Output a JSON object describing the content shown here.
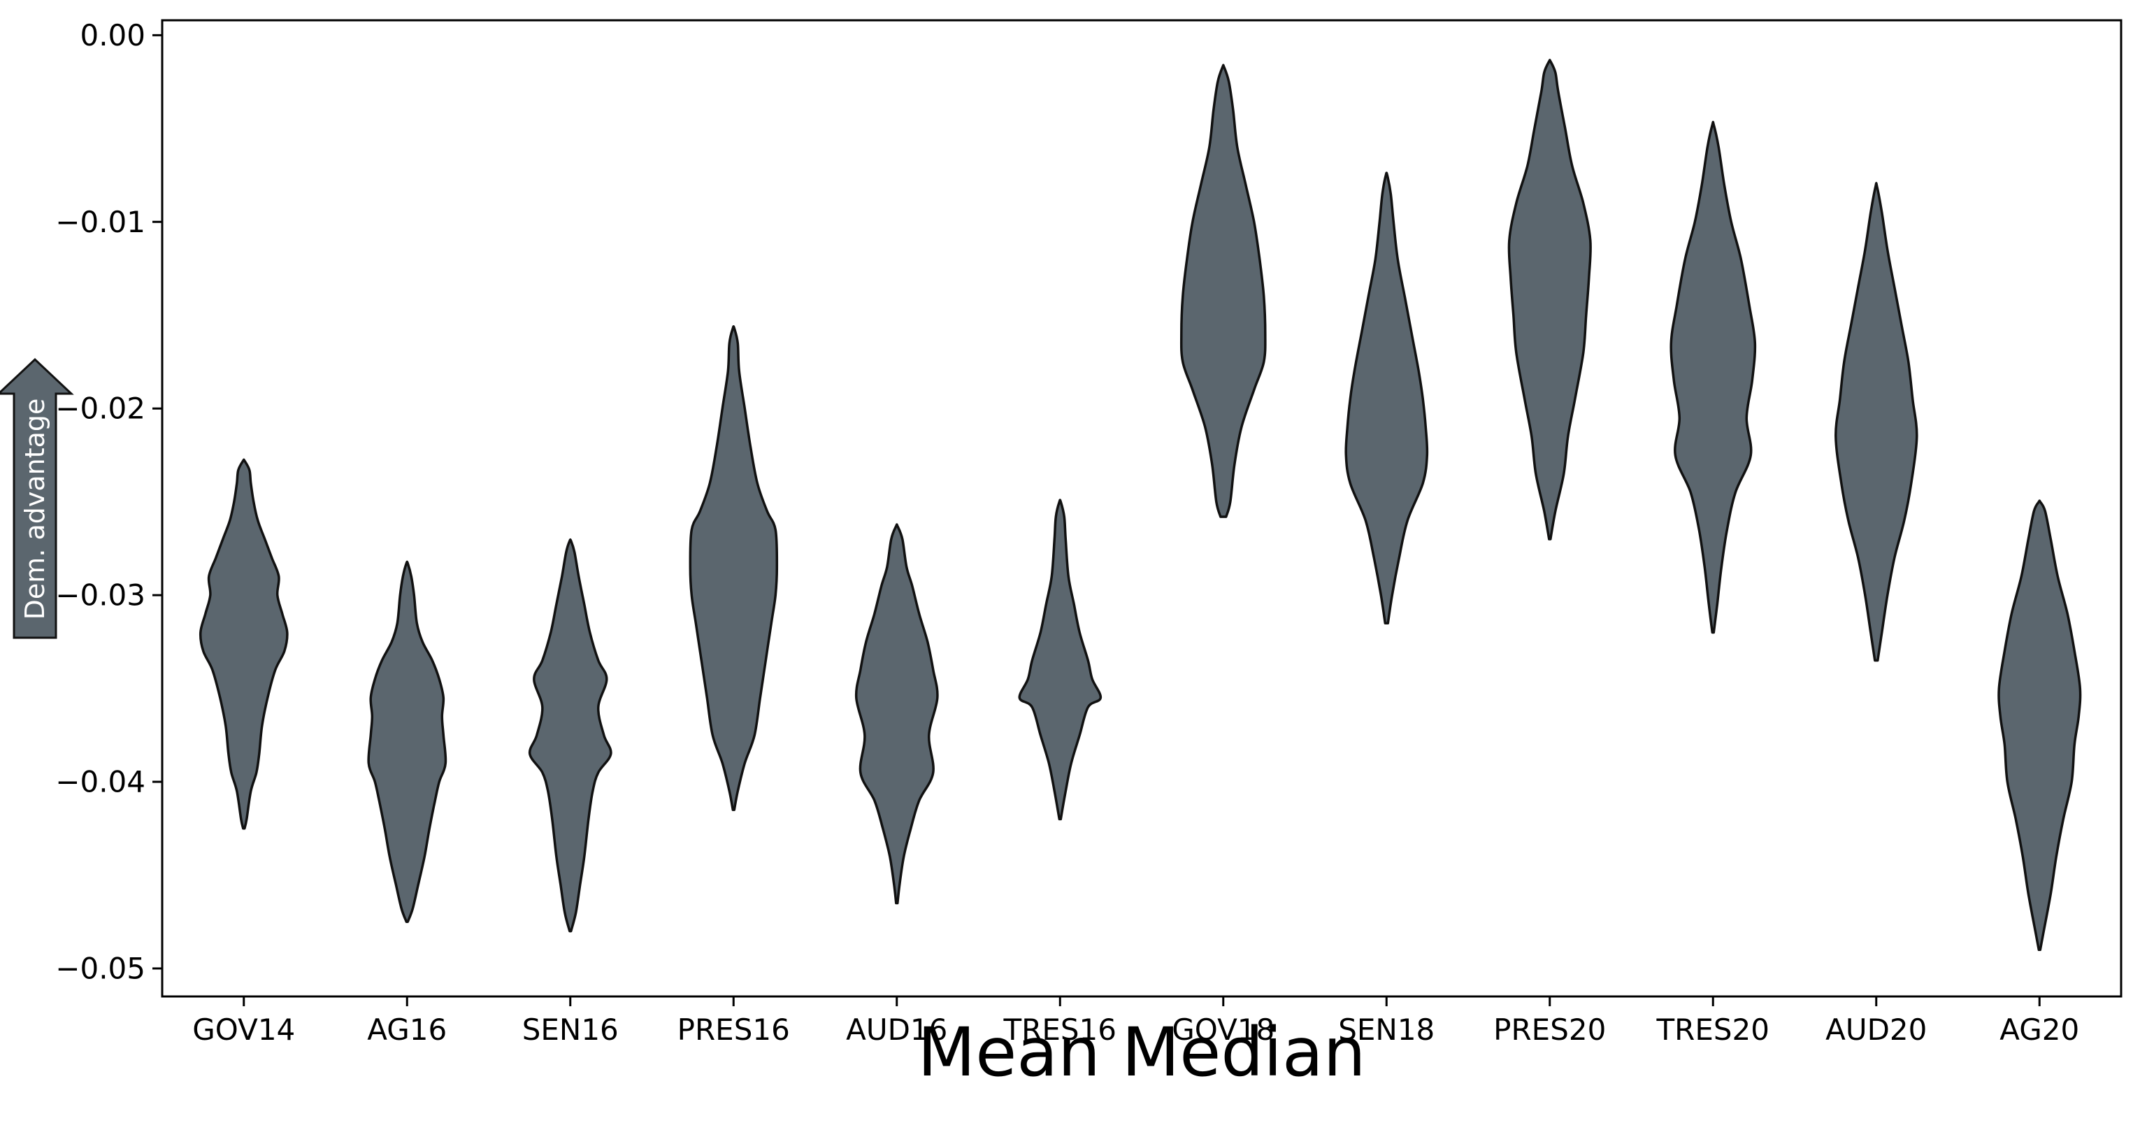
{
  "chart_data": {
    "type": "violin",
    "title": "",
    "xlabel": "Mean Median",
    "ylabel": "Dem. advantage",
    "ylim": [
      -0.0515,
      0.0008
    ],
    "yticks": [
      0.0,
      -0.01,
      -0.02,
      -0.03,
      -0.04,
      -0.05
    ],
    "ytick_labels": [
      "0.00",
      "−0.01",
      "−0.02",
      "−0.03",
      "−0.04",
      "−0.05"
    ],
    "grid": false,
    "legend": "none",
    "colors": {
      "violin_fill": "#5b666e",
      "violin_edge": "#111111",
      "axis": "#000000",
      "arrow_fill": "#5b666e"
    },
    "categories": [
      "GOV14",
      "AG16",
      "SEN16",
      "PRES16",
      "AUD16",
      "TRES16",
      "GOV18",
      "SEN18",
      "PRES20",
      "TRES20",
      "AUD20",
      "AG20"
    ],
    "violins": [
      {
        "category": "GOV14",
        "min": -0.0425,
        "max": -0.0228,
        "profile": [
          [
            -0.0425,
            0.001
          ],
          [
            -0.042,
            0.004
          ],
          [
            -0.0405,
            0.01
          ],
          [
            -0.0395,
            0.018
          ],
          [
            -0.0385,
            0.022
          ],
          [
            -0.037,
            0.026
          ],
          [
            -0.0355,
            0.034
          ],
          [
            -0.034,
            0.045
          ],
          [
            -0.033,
            0.058
          ],
          [
            -0.032,
            0.062
          ],
          [
            -0.031,
            0.055
          ],
          [
            -0.03,
            0.048
          ],
          [
            -0.029,
            0.05
          ],
          [
            -0.028,
            0.04
          ],
          [
            -0.027,
            0.03
          ],
          [
            -0.026,
            0.02
          ],
          [
            -0.025,
            0.014
          ],
          [
            -0.024,
            0.01
          ],
          [
            -0.0233,
            0.008
          ],
          [
            -0.0228,
            0.001
          ]
        ]
      },
      {
        "category": "AG16",
        "min": -0.0475,
        "max": -0.0283,
        "profile": [
          [
            -0.0475,
            0.001
          ],
          [
            -0.0468,
            0.008
          ],
          [
            -0.0455,
            0.016
          ],
          [
            -0.044,
            0.025
          ],
          [
            -0.0425,
            0.032
          ],
          [
            -0.041,
            0.04
          ],
          [
            -0.04,
            0.046
          ],
          [
            -0.039,
            0.055
          ],
          [
            -0.0375,
            0.052
          ],
          [
            -0.0365,
            0.05
          ],
          [
            -0.0355,
            0.052
          ],
          [
            -0.0345,
            0.046
          ],
          [
            -0.0335,
            0.036
          ],
          [
            -0.0325,
            0.022
          ],
          [
            -0.0315,
            0.014
          ],
          [
            -0.03,
            0.01
          ],
          [
            -0.029,
            0.006
          ],
          [
            -0.0283,
            0.001
          ]
        ]
      },
      {
        "category": "SEN16",
        "min": -0.048,
        "max": -0.0271,
        "profile": [
          [
            -0.048,
            0.001
          ],
          [
            -0.047,
            0.008
          ],
          [
            -0.0455,
            0.014
          ],
          [
            -0.044,
            0.02
          ],
          [
            -0.042,
            0.026
          ],
          [
            -0.0405,
            0.032
          ],
          [
            -0.0395,
            0.04
          ],
          [
            -0.0385,
            0.058
          ],
          [
            -0.0375,
            0.048
          ],
          [
            -0.036,
            0.04
          ],
          [
            -0.0345,
            0.052
          ],
          [
            -0.0335,
            0.04
          ],
          [
            -0.032,
            0.028
          ],
          [
            -0.0305,
            0.02
          ],
          [
            -0.029,
            0.012
          ],
          [
            -0.0277,
            0.006
          ],
          [
            -0.0271,
            0.001
          ]
        ]
      },
      {
        "category": "PRES16",
        "min": -0.0415,
        "max": -0.0157,
        "profile": [
          [
            -0.0415,
            0.001
          ],
          [
            -0.0405,
            0.006
          ],
          [
            -0.039,
            0.016
          ],
          [
            -0.0375,
            0.03
          ],
          [
            -0.0355,
            0.038
          ],
          [
            -0.0335,
            0.046
          ],
          [
            -0.0315,
            0.054
          ],
          [
            -0.03,
            0.06
          ],
          [
            -0.0285,
            0.062
          ],
          [
            -0.0265,
            0.06
          ],
          [
            -0.0255,
            0.048
          ],
          [
            -0.024,
            0.034
          ],
          [
            -0.022,
            0.024
          ],
          [
            -0.02,
            0.016
          ],
          [
            -0.018,
            0.008
          ],
          [
            -0.0165,
            0.006
          ],
          [
            -0.0157,
            0.001
          ]
        ]
      },
      {
        "category": "AUD16",
        "min": -0.0465,
        "max": -0.0263,
        "profile": [
          [
            -0.0465,
            0.001
          ],
          [
            -0.0455,
            0.004
          ],
          [
            -0.044,
            0.01
          ],
          [
            -0.0425,
            0.02
          ],
          [
            -0.041,
            0.032
          ],
          [
            -0.0395,
            0.052
          ],
          [
            -0.0375,
            0.046
          ],
          [
            -0.0355,
            0.058
          ],
          [
            -0.034,
            0.052
          ],
          [
            -0.0325,
            0.044
          ],
          [
            -0.031,
            0.032
          ],
          [
            -0.0295,
            0.022
          ],
          [
            -0.0285,
            0.014
          ],
          [
            -0.027,
            0.008
          ],
          [
            -0.0263,
            0.001
          ]
        ]
      },
      {
        "category": "TRES16",
        "min": -0.042,
        "max": -0.025,
        "profile": [
          [
            -0.042,
            0.001
          ],
          [
            -0.0405,
            0.008
          ],
          [
            -0.039,
            0.016
          ],
          [
            -0.0375,
            0.028
          ],
          [
            -0.036,
            0.04
          ],
          [
            -0.0355,
            0.058
          ],
          [
            -0.0345,
            0.046
          ],
          [
            -0.0335,
            0.04
          ],
          [
            -0.032,
            0.028
          ],
          [
            -0.0305,
            0.02
          ],
          [
            -0.029,
            0.012
          ],
          [
            -0.027,
            0.008
          ],
          [
            -0.0258,
            0.006
          ],
          [
            -0.025,
            0.001
          ]
        ]
      },
      {
        "category": "GOV18",
        "min": -0.0258,
        "max": -0.0017,
        "profile": [
          [
            -0.0258,
            0.004
          ],
          [
            -0.025,
            0.01
          ],
          [
            -0.023,
            0.016
          ],
          [
            -0.021,
            0.026
          ],
          [
            -0.019,
            0.044
          ],
          [
            -0.0175,
            0.058
          ],
          [
            -0.016,
            0.06
          ],
          [
            -0.014,
            0.058
          ],
          [
            -0.012,
            0.052
          ],
          [
            -0.01,
            0.044
          ],
          [
            -0.008,
            0.032
          ],
          [
            -0.006,
            0.02
          ],
          [
            -0.004,
            0.014
          ],
          [
            -0.0025,
            0.008
          ],
          [
            -0.0017,
            0.001
          ]
        ]
      },
      {
        "category": "SEN18",
        "min": -0.0315,
        "max": -0.0075,
        "profile": [
          [
            -0.0315,
            0.002
          ],
          [
            -0.03,
            0.008
          ],
          [
            -0.028,
            0.018
          ],
          [
            -0.026,
            0.03
          ],
          [
            -0.024,
            0.052
          ],
          [
            -0.0225,
            0.058
          ],
          [
            -0.021,
            0.056
          ],
          [
            -0.0195,
            0.052
          ],
          [
            -0.018,
            0.046
          ],
          [
            -0.016,
            0.036
          ],
          [
            -0.014,
            0.026
          ],
          [
            -0.012,
            0.016
          ],
          [
            -0.01,
            0.01
          ],
          [
            -0.0085,
            0.006
          ],
          [
            -0.0075,
            0.001
          ]
        ]
      },
      {
        "category": "PRES20",
        "min": -0.027,
        "max": -0.0014,
        "profile": [
          [
            -0.027,
            0.001
          ],
          [
            -0.0255,
            0.008
          ],
          [
            -0.0235,
            0.02
          ],
          [
            -0.0215,
            0.026
          ],
          [
            -0.0195,
            0.036
          ],
          [
            -0.017,
            0.048
          ],
          [
            -0.015,
            0.052
          ],
          [
            -0.013,
            0.056
          ],
          [
            -0.011,
            0.058
          ],
          [
            -0.009,
            0.048
          ],
          [
            -0.007,
            0.032
          ],
          [
            -0.005,
            0.022
          ],
          [
            -0.003,
            0.012
          ],
          [
            -0.002,
            0.008
          ],
          [
            -0.0014,
            0.001
          ]
        ]
      },
      {
        "category": "TRES20",
        "min": -0.032,
        "max": -0.0048,
        "profile": [
          [
            -0.032,
            0.001
          ],
          [
            -0.0305,
            0.006
          ],
          [
            -0.0285,
            0.012
          ],
          [
            -0.0265,
            0.02
          ],
          [
            -0.0245,
            0.032
          ],
          [
            -0.0225,
            0.054
          ],
          [
            -0.0205,
            0.048
          ],
          [
            -0.0185,
            0.056
          ],
          [
            -0.0165,
            0.06
          ],
          [
            -0.0145,
            0.052
          ],
          [
            -0.012,
            0.04
          ],
          [
            -0.01,
            0.026
          ],
          [
            -0.008,
            0.016
          ],
          [
            -0.006,
            0.008
          ],
          [
            -0.0048,
            0.001
          ]
        ]
      },
      {
        "category": "AUD20",
        "min": -0.0335,
        "max": -0.0081,
        "profile": [
          [
            -0.0335,
            0.002
          ],
          [
            -0.032,
            0.008
          ],
          [
            -0.03,
            0.016
          ],
          [
            -0.028,
            0.026
          ],
          [
            -0.026,
            0.04
          ],
          [
            -0.024,
            0.05
          ],
          [
            -0.0215,
            0.058
          ],
          [
            -0.0195,
            0.052
          ],
          [
            -0.0175,
            0.046
          ],
          [
            -0.0155,
            0.036
          ],
          [
            -0.0135,
            0.026
          ],
          [
            -0.0115,
            0.016
          ],
          [
            -0.0095,
            0.008
          ],
          [
            -0.0081,
            0.001
          ]
        ]
      },
      {
        "category": "AG20",
        "min": -0.049,
        "max": -0.025,
        "profile": [
          [
            -0.049,
            0.001
          ],
          [
            -0.048,
            0.006
          ],
          [
            -0.046,
            0.016
          ],
          [
            -0.044,
            0.024
          ],
          [
            -0.042,
            0.034
          ],
          [
            -0.04,
            0.046
          ],
          [
            -0.038,
            0.05
          ],
          [
            -0.0365,
            0.056
          ],
          [
            -0.035,
            0.058
          ],
          [
            -0.033,
            0.05
          ],
          [
            -0.031,
            0.04
          ],
          [
            -0.029,
            0.026
          ],
          [
            -0.027,
            0.016
          ],
          [
            -0.0255,
            0.008
          ],
          [
            -0.025,
            0.001
          ]
        ]
      }
    ]
  }
}
